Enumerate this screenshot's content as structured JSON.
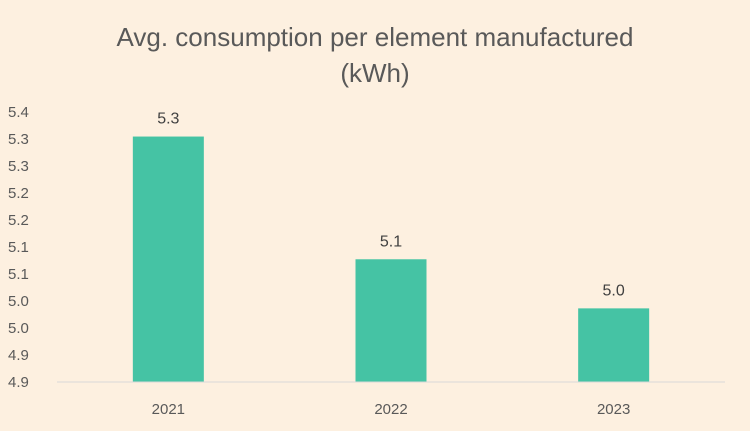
{
  "chart_data": {
    "type": "bar",
    "title_lines": [
      "Avg. consumption per element manufactured",
      "(kWh)"
    ],
    "categories": [
      "2021",
      "2022",
      "2023"
    ],
    "values": [
      5.35,
      5.1,
      5.0
    ],
    "data_labels": [
      "5.3",
      "5.1",
      "5.0"
    ],
    "y_tick_labels": [
      "5.4",
      "5.3",
      "5.3",
      "5.2",
      "5.2",
      "5.1",
      "5.1",
      "5.0",
      "5.0",
      "4.9",
      "4.9"
    ],
    "ylim": [
      4.85,
      5.4
    ],
    "xlabel": "",
    "ylabel": "",
    "grid": false,
    "legend": "none",
    "colors": {
      "bar": "#45c3a4",
      "background": "#fdf0e0",
      "axis": "#d9d9d9"
    }
  }
}
